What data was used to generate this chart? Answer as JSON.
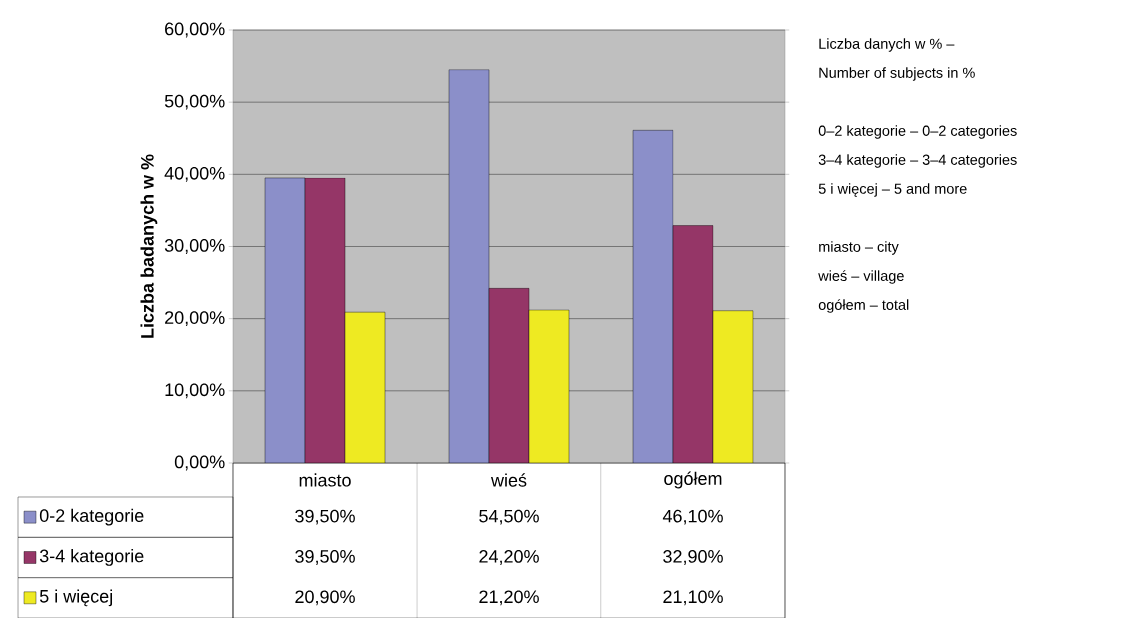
{
  "chart_data": {
    "type": "bar",
    "ylabel": "Liczba badanych w %",
    "categories": [
      "miasto",
      "wieś",
      "ogółem"
    ],
    "series": [
      {
        "name": "0-2  kategorie",
        "color": "#8b8fc9",
        "values": [
          39.5,
          54.5,
          46.1
        ],
        "value_labels": [
          "39,50%",
          "54,50%",
          "46,10%"
        ]
      },
      {
        "name": "3-4 kategorie",
        "color": "#953667",
        "values": [
          39.5,
          24.2,
          32.9
        ],
        "value_labels": [
          "39,50%",
          "24,20%",
          "32,90%"
        ]
      },
      {
        "name": "5 i więcej",
        "color": "#eeea22",
        "values": [
          20.9,
          21.2,
          21.1
        ],
        "value_labels": [
          "20,90%",
          "21,20%",
          "21,10%"
        ]
      }
    ],
    "ylim": [
      0,
      60
    ],
    "yticks": [
      {
        "value": 0,
        "label": "0,00%"
      },
      {
        "value": 10,
        "label": "10,00%"
      },
      {
        "value": 20,
        "label": "20,00%"
      },
      {
        "value": 30,
        "label": "30,00%"
      },
      {
        "value": 40,
        "label": "40,00%"
      },
      {
        "value": 50,
        "label": "50,00%"
      },
      {
        "value": 60,
        "label": "60,00%"
      }
    ],
    "grid": "y",
    "legend": "bottom left",
    "annotations": [
      "Liczba danych w % –",
      "Number of subjects in %",
      "0–2 kategorie – 0–2 categories",
      "3–4 kategorie – 3–4 categories",
      "5 i więcej – 5 and more",
      "miasto – city",
      "wieś – village",
      "ogółem – total"
    ]
  }
}
